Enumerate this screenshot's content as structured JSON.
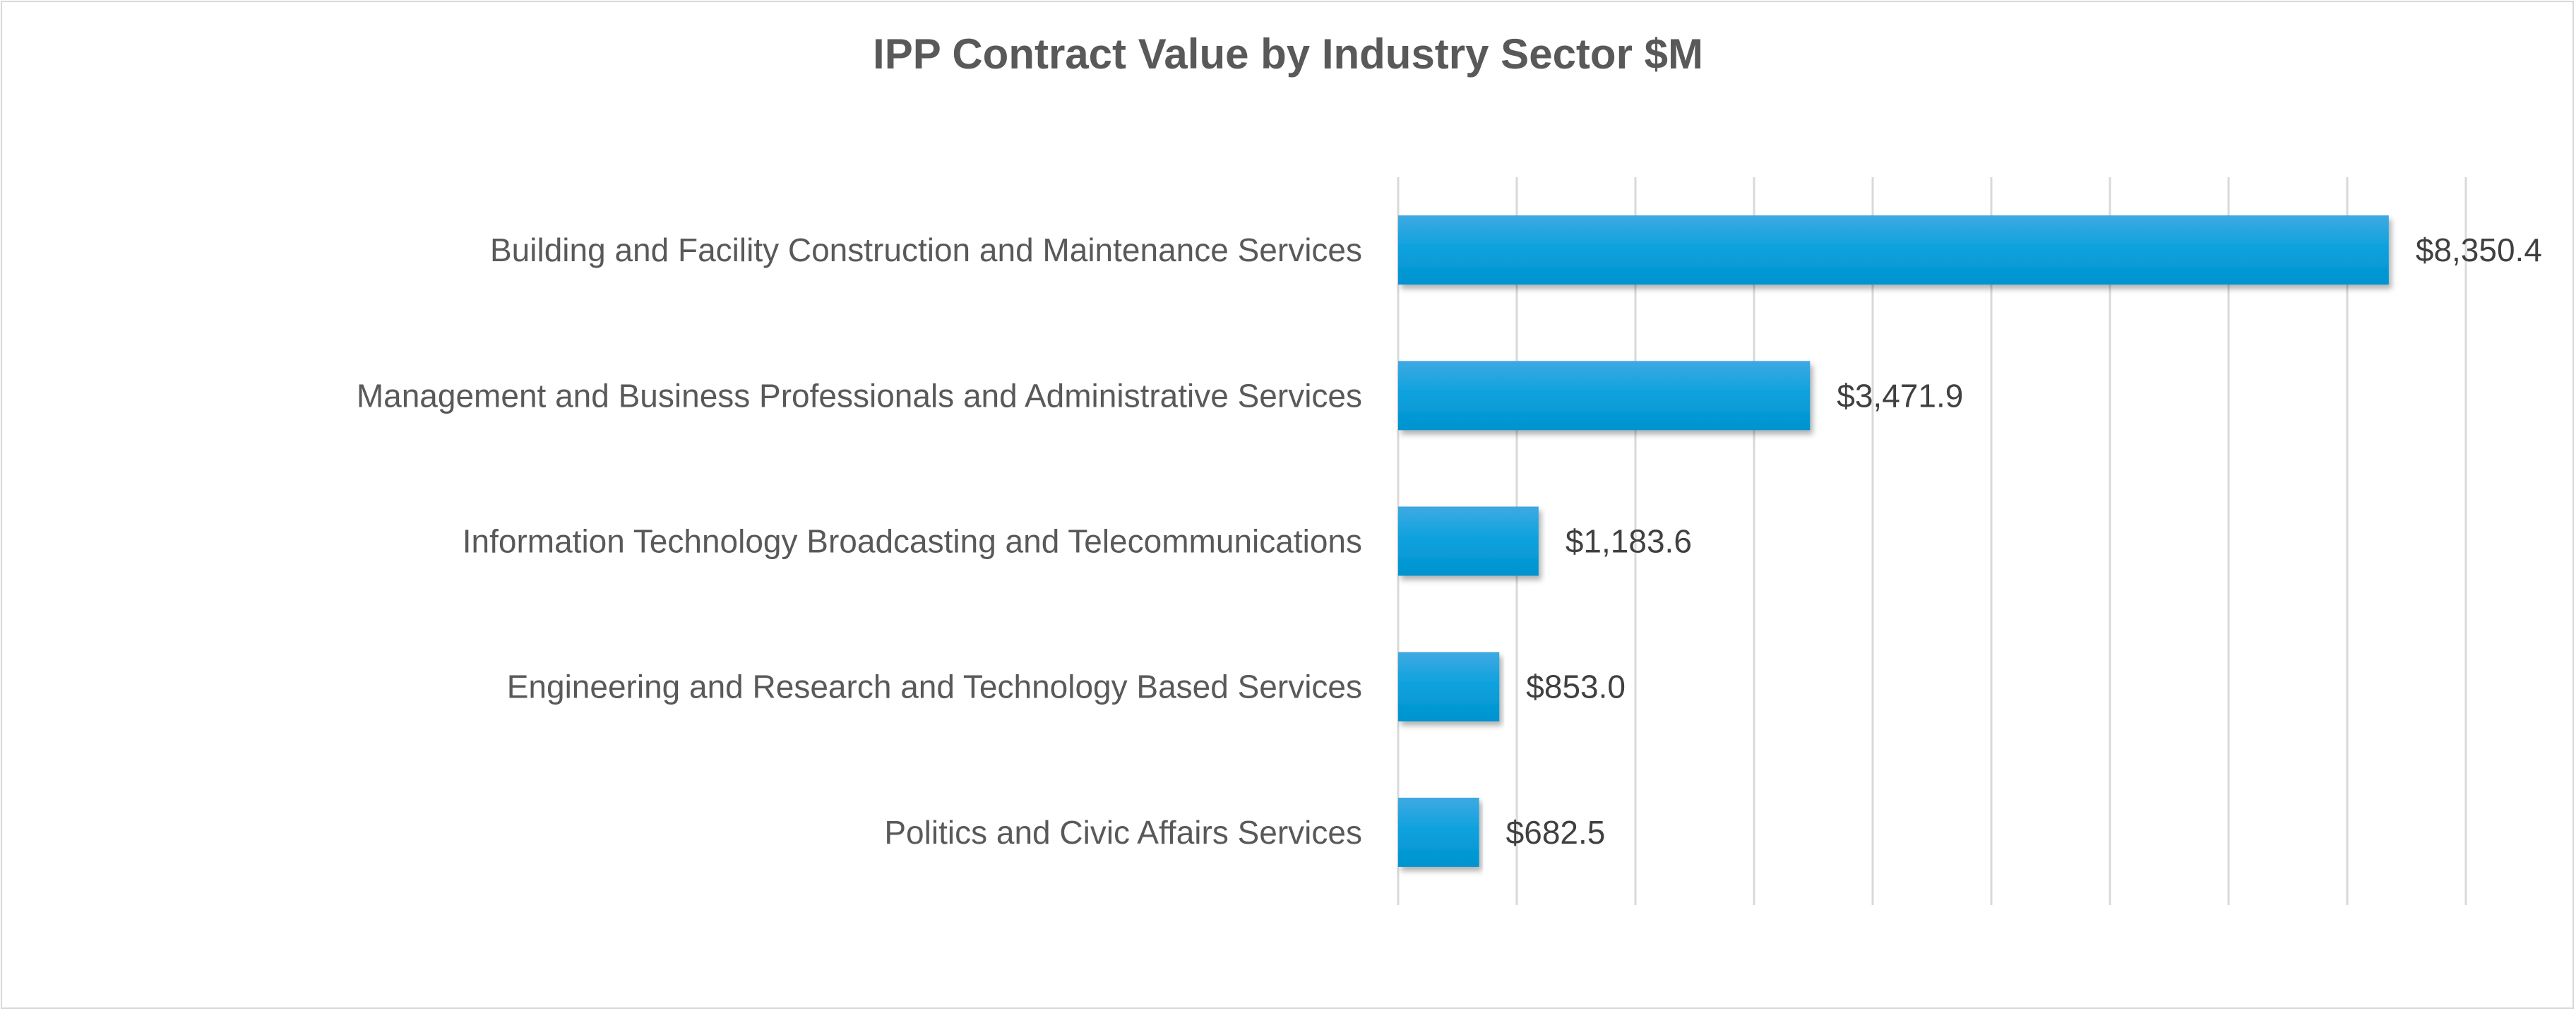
{
  "chart_data": {
    "type": "bar",
    "orientation": "horizontal",
    "title": "IPP Contract Value by Industry Sector $M",
    "categories": [
      "Building and Facility Construction and Maintenance Services",
      "Management and Business Professionals and Administrative Services",
      "Information Technology Broadcasting and Telecommunications",
      "Engineering and Research and Technology Based Services",
      "Politics and Civic Affairs Services"
    ],
    "values": [
      8350.4,
      3471.9,
      1183.6,
      853.0,
      682.5
    ],
    "data_labels": [
      "$8,350.4",
      "$3,471.9",
      "$1,183.6",
      "$853.0",
      "$682.5"
    ],
    "xlim": [
      0,
      9000
    ],
    "x_gridline_step": 1000,
    "x_tick_labels_shown": false,
    "grid": true,
    "legend": "none",
    "bar_color": "#0ea2de"
  }
}
